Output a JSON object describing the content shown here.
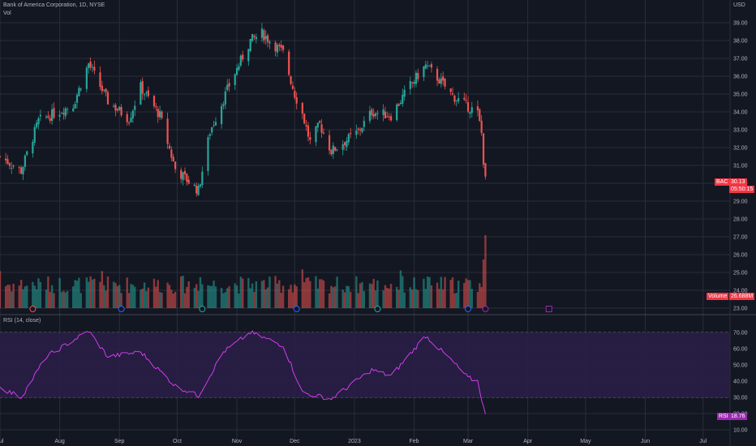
{
  "header": {
    "symbol_line": "Bank of America Corporation, 1D, NYSE",
    "volume_label": "Vol",
    "rsi_label": "RSI (14, close)"
  },
  "price_axis": {
    "currency": "USD",
    "ticks": [
      "39.00",
      "38.00",
      "37.00",
      "36.00",
      "35.00",
      "34.00",
      "33.00",
      "32.00",
      "31.00",
      "30.00",
      "29.00",
      "28.00",
      "27.00",
      "26.00",
      "25.00",
      "24.00",
      "23.00"
    ]
  },
  "rsi_axis": {
    "ticks": [
      "70.00",
      "60.00",
      "50.00",
      "40.00",
      "30.00",
      "20.00",
      "10.00"
    ]
  },
  "time_axis": {
    "labels": [
      "Jul",
      "Aug",
      "Sep",
      "Oct",
      "Nov",
      "Dec",
      "2023",
      "Feb",
      "Mar",
      "Apr",
      "May",
      "Jun",
      "Jul"
    ]
  },
  "tags": {
    "price": {
      "symbol": "BAC",
      "value": "30.13",
      "countdown": "05:50:15",
      "color": "#f23645"
    },
    "volume": {
      "label": "Volume",
      "value": "26.688M",
      "color": "#f23645"
    },
    "rsi": {
      "label": "RSI",
      "value": "18.76",
      "color": "#9c27b0"
    }
  },
  "colors": {
    "up": "#26a69a",
    "down": "#ef5350",
    "rsi_line": "#e040fb",
    "rsi_band": "#2a1e46"
  },
  "chart_data": {
    "type": "candlestick",
    "x_range": [
      "2022-07-01",
      "2023-07-15"
    ],
    "price_range": [
      23.0,
      39.5
    ],
    "rsi_range": [
      10,
      75
    ],
    "rsi_bands": [
      30,
      70
    ],
    "price_key_points": [
      {
        "date": "2022-07-01",
        "close": 31.5
      },
      {
        "date": "2022-07-12",
        "close": 30.7
      },
      {
        "date": "2022-07-21",
        "close": 33.5
      },
      {
        "date": "2022-08-08",
        "close": 34.4
      },
      {
        "date": "2022-08-16",
        "close": 36.7
      },
      {
        "date": "2022-08-26",
        "close": 34.6
      },
      {
        "date": "2022-09-06",
        "close": 33.6
      },
      {
        "date": "2022-09-12",
        "close": 35.4
      },
      {
        "date": "2022-09-22",
        "close": 33.8
      },
      {
        "date": "2022-09-30",
        "close": 30.8
      },
      {
        "date": "2022-10-12",
        "close": 29.6
      },
      {
        "date": "2022-10-18",
        "close": 32.9
      },
      {
        "date": "2022-10-28",
        "close": 35.5
      },
      {
        "date": "2022-11-08",
        "close": 38.0
      },
      {
        "date": "2022-11-14",
        "close": 38.4
      },
      {
        "date": "2022-11-25",
        "close": 37.3
      },
      {
        "date": "2022-12-01",
        "close": 35.0
      },
      {
        "date": "2022-12-05",
        "close": 33.9
      },
      {
        "date": "2022-12-09",
        "close": 32.3
      },
      {
        "date": "2022-12-14",
        "close": 33.3
      },
      {
        "date": "2022-12-20",
        "close": 31.8
      },
      {
        "date": "2023-01-03",
        "close": 32.9
      },
      {
        "date": "2023-01-10",
        "close": 34.0
      },
      {
        "date": "2023-01-20",
        "close": 33.8
      },
      {
        "date": "2023-01-30",
        "close": 35.5
      },
      {
        "date": "2023-02-07",
        "close": 36.6
      },
      {
        "date": "2023-02-14",
        "close": 35.8
      },
      {
        "date": "2023-02-21",
        "close": 34.9
      },
      {
        "date": "2023-03-01",
        "close": 34.3
      },
      {
        "date": "2023-03-06",
        "close": 33.9
      },
      {
        "date": "2023-03-08",
        "close": 32.8
      },
      {
        "date": "2023-03-09",
        "close": 31.3
      },
      {
        "date": "2023-03-10",
        "close": 30.13
      }
    ],
    "rsi_key_points": [
      {
        "date": "2022-07-01",
        "v": 36
      },
      {
        "date": "2022-07-12",
        "v": 30
      },
      {
        "date": "2022-07-25",
        "v": 55
      },
      {
        "date": "2022-08-16",
        "v": 71
      },
      {
        "date": "2022-08-26",
        "v": 55
      },
      {
        "date": "2022-09-12",
        "v": 58
      },
      {
        "date": "2022-09-30",
        "v": 37
      },
      {
        "date": "2022-10-12",
        "v": 31
      },
      {
        "date": "2022-10-25",
        "v": 58
      },
      {
        "date": "2022-11-08",
        "v": 70
      },
      {
        "date": "2022-11-25",
        "v": 62
      },
      {
        "date": "2022-12-05",
        "v": 33
      },
      {
        "date": "2022-12-20",
        "v": 29
      },
      {
        "date": "2023-01-10",
        "v": 47
      },
      {
        "date": "2023-01-20",
        "v": 43
      },
      {
        "date": "2023-02-07",
        "v": 68
      },
      {
        "date": "2023-02-21",
        "v": 52
      },
      {
        "date": "2023-03-01",
        "v": 42
      },
      {
        "date": "2023-03-06",
        "v": 40
      },
      {
        "date": "2023-03-10",
        "v": 18.76
      }
    ],
    "volume_last": "26.688M"
  }
}
